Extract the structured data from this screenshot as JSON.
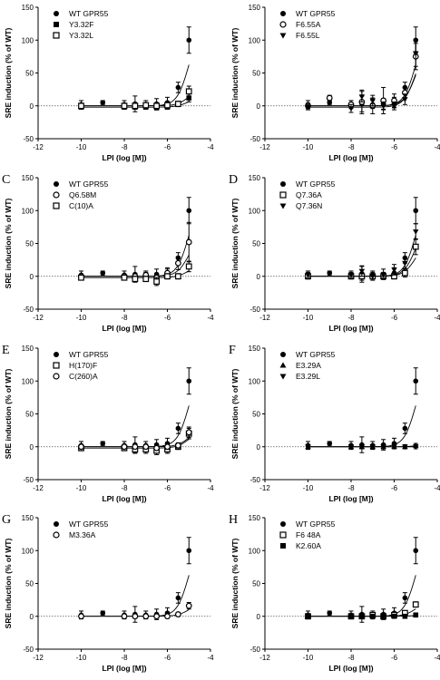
{
  "chart_data": [
    {
      "type": "scatter",
      "panel_label": "",
      "xlabel": "LPI (log [M])",
      "ylabel": "SRE induction (% of WT)",
      "xlim": [
        -12,
        -4
      ],
      "ylim": [
        -50,
        150
      ],
      "xticks": [
        "-12",
        "-10",
        "-8",
        "-6",
        "-4"
      ],
      "yticks": [
        "-50",
        "0",
        "50",
        "100",
        "150"
      ],
      "legend_position": "top-left",
      "series": [
        {
          "name": "WT GPR55",
          "marker": "filled-circle",
          "x": [
            -10,
            -9,
            -8,
            -7.5,
            -7,
            -6.5,
            -6,
            -5.5,
            -5
          ],
          "y": [
            2,
            5,
            2,
            3,
            2,
            3,
            5,
            28,
            100
          ],
          "err": [
            6,
            3,
            6,
            12,
            6,
            8,
            8,
            8,
            20
          ]
        },
        {
          "name": "Y3.32F",
          "marker": "filled-square",
          "x": [
            -10,
            -8,
            -7.5,
            -7,
            -6.5,
            -6,
            -5.5,
            -5
          ],
          "y": [
            -2,
            -2,
            -2,
            -2,
            -3,
            -2,
            2,
            12
          ],
          "err": [
            3,
            3,
            3,
            3,
            3,
            3,
            3,
            6
          ]
        },
        {
          "name": "Y3.32L",
          "marker": "open-square",
          "x": [
            -10,
            -8,
            -7.5,
            -7,
            -6.5,
            -6,
            -5.5,
            -5
          ],
          "y": [
            0,
            0,
            0,
            1,
            0,
            1,
            3,
            22
          ],
          "err": [
            3,
            3,
            3,
            3,
            3,
            3,
            4,
            8
          ]
        }
      ]
    },
    {
      "type": "scatter",
      "panel_label": "",
      "xlabel": "LPI (log [M])",
      "ylabel": "SRE induction (% of WT)",
      "xlim": [
        -12,
        -4
      ],
      "ylim": [
        -50,
        150
      ],
      "xticks": [
        "-12",
        "-10",
        "-8",
        "-6",
        "-4"
      ],
      "yticks": [
        "-50",
        "0",
        "50",
        "100",
        "150"
      ],
      "legend_position": "top-left",
      "series": [
        {
          "name": "WT GPR55",
          "marker": "filled-circle",
          "x": [
            -10,
            -9,
            -8,
            -7.5,
            -7,
            -6.5,
            -6,
            -5.5,
            -5
          ],
          "y": [
            2,
            5,
            2,
            3,
            2,
            3,
            5,
            28,
            100
          ],
          "err": [
            6,
            3,
            6,
            12,
            6,
            8,
            8,
            8,
            20
          ]
        },
        {
          "name": "F6.55A",
          "marker": "open-circle",
          "x": [
            -10,
            -9,
            -8,
            -7.5,
            -7,
            -6.5,
            -6,
            -5.5,
            -5
          ],
          "y": [
            0,
            12,
            2,
            6,
            0,
            8,
            8,
            20,
            75
          ],
          "err": [
            4,
            4,
            6,
            18,
            12,
            20,
            10,
            8,
            20
          ]
        },
        {
          "name": "F6.55L",
          "marker": "filled-triangle-down",
          "x": [
            -10,
            -8,
            -7.5,
            -7,
            -6.5,
            -6,
            -5.5,
            -5
          ],
          "y": [
            -2,
            -4,
            14,
            8,
            0,
            0,
            10,
            80
          ],
          "err": [
            4,
            6,
            8,
            8,
            6,
            6,
            8,
            20
          ]
        }
      ]
    },
    {
      "type": "scatter",
      "panel_label": "C",
      "xlabel": "LPI (log [M])",
      "ylabel": "SRE induction (% of WT)",
      "xlim": [
        -12,
        -4
      ],
      "ylim": [
        -50,
        150
      ],
      "xticks": [
        "-12",
        "-10",
        "-8",
        "-6",
        "-4"
      ],
      "yticks": [
        "-50",
        "0",
        "50",
        "100",
        "150"
      ],
      "legend_position": "top-left",
      "series": [
        {
          "name": "WT GPR55",
          "marker": "filled-circle",
          "x": [
            -10,
            -9,
            -8,
            -7.5,
            -7,
            -6.5,
            -6,
            -5.5,
            -5
          ],
          "y": [
            2,
            5,
            2,
            3,
            2,
            3,
            5,
            28,
            100
          ],
          "err": [
            6,
            3,
            6,
            12,
            6,
            8,
            8,
            8,
            20
          ]
        },
        {
          "name": "Q6.58M",
          "marker": "open-circle",
          "x": [
            -10,
            -8,
            -7.5,
            -7,
            -6.5,
            -6,
            -5.5,
            -5
          ],
          "y": [
            0,
            0,
            0,
            2,
            -2,
            5,
            20,
            52
          ],
          "err": [
            3,
            3,
            4,
            4,
            4,
            6,
            10,
            30
          ]
        },
        {
          "name": "C(10)A",
          "marker": "open-square",
          "x": [
            -10,
            -8,
            -7.5,
            -7,
            -6.5,
            -6,
            -5.5,
            -5
          ],
          "y": [
            -2,
            -2,
            -4,
            -4,
            -8,
            0,
            0,
            15
          ],
          "err": [
            3,
            3,
            4,
            4,
            6,
            4,
            4,
            8
          ]
        }
      ]
    },
    {
      "type": "scatter",
      "panel_label": "D",
      "xlabel": "LPI (log [M])",
      "ylabel": "SRE induction (% of WT)",
      "xlim": [
        -12,
        -4
      ],
      "ylim": [
        -50,
        150
      ],
      "xticks": [
        "-12",
        "-10",
        "-8",
        "-6",
        "-4"
      ],
      "yticks": [
        "-50",
        "0",
        "50",
        "100",
        "150"
      ],
      "legend_position": "top-left",
      "series": [
        {
          "name": "WT GPR55",
          "marker": "filled-circle",
          "x": [
            -10,
            -9,
            -8,
            -7.5,
            -7,
            -6.5,
            -6,
            -5.5,
            -5
          ],
          "y": [
            2,
            5,
            2,
            3,
            2,
            3,
            5,
            28,
            100
          ],
          "err": [
            6,
            3,
            6,
            12,
            6,
            8,
            8,
            8,
            20
          ]
        },
        {
          "name": "Q7.36A",
          "marker": "open-square",
          "x": [
            -10,
            -8,
            -7.5,
            -7,
            -6.5,
            -6,
            -5.5,
            -5
          ],
          "y": [
            0,
            0,
            0,
            0,
            0,
            0,
            5,
            45
          ],
          "err": [
            4,
            4,
            6,
            4,
            4,
            4,
            6,
            12
          ]
        },
        {
          "name": "Q7.36N",
          "marker": "filled-triangle-down",
          "x": [
            -10,
            -8,
            -7.5,
            -7,
            -6.5,
            -6,
            -5.5,
            -5
          ],
          "y": [
            2,
            2,
            8,
            0,
            2,
            10,
            20,
            68
          ],
          "err": [
            4,
            4,
            8,
            6,
            4,
            8,
            8,
            12
          ]
        }
      ]
    },
    {
      "type": "scatter",
      "panel_label": "E",
      "xlabel": "LPI (log [M])",
      "ylabel": "SRE induction (% of WT)",
      "xlim": [
        -12,
        -4
      ],
      "ylim": [
        -50,
        150
      ],
      "xticks": [
        "-12",
        "-10",
        "-8",
        "-6",
        "-4"
      ],
      "yticks": [
        "-50",
        "0",
        "50",
        "100",
        "150"
      ],
      "legend_position": "top-left",
      "series": [
        {
          "name": "WT GPR55",
          "marker": "filled-circle",
          "x": [
            -10,
            -9,
            -8,
            -7.5,
            -7,
            -6.5,
            -6,
            -5.5,
            -5
          ],
          "y": [
            2,
            5,
            2,
            3,
            2,
            3,
            5,
            28,
            100
          ],
          "err": [
            6,
            3,
            6,
            12,
            6,
            8,
            8,
            8,
            20
          ]
        },
        {
          "name": "H(170)F",
          "marker": "open-square",
          "x": [
            -10,
            -8,
            -7.5,
            -7,
            -6.5,
            -6,
            -5.5,
            -5
          ],
          "y": [
            -2,
            -2,
            -4,
            -4,
            -6,
            -4,
            0,
            20
          ],
          "err": [
            4,
            4,
            6,
            6,
            6,
            6,
            4,
            8
          ]
        },
        {
          "name": "C(260)A",
          "marker": "open-circle",
          "x": [
            -10,
            -8,
            -7.5,
            -7,
            -6.5,
            -6,
            -5.5,
            -5
          ],
          "y": [
            0,
            0,
            0,
            0,
            -2,
            0,
            2,
            22
          ],
          "err": [
            3,
            3,
            3,
            3,
            3,
            4,
            4,
            8
          ]
        }
      ]
    },
    {
      "type": "scatter",
      "panel_label": "F",
      "xlabel": "LPI (log [M])",
      "ylabel": "SRE induction (% of WT)",
      "xlim": [
        -12,
        -4
      ],
      "ylim": [
        -50,
        150
      ],
      "xticks": [
        "-12",
        "-10",
        "-8",
        "-6",
        "-4"
      ],
      "yticks": [
        "-50",
        "0",
        "50",
        "100",
        "150"
      ],
      "legend_position": "top-left",
      "series": [
        {
          "name": "WT GPR55",
          "marker": "filled-circle",
          "x": [
            -10,
            -9,
            -8,
            -7.5,
            -7,
            -6.5,
            -6,
            -5.5,
            -5
          ],
          "y": [
            2,
            5,
            2,
            3,
            2,
            3,
            5,
            28,
            100
          ],
          "err": [
            6,
            3,
            6,
            12,
            6,
            8,
            8,
            8,
            20
          ]
        },
        {
          "name": "E3.29A",
          "marker": "filled-triangle-up",
          "x": [
            -10,
            -8,
            -7.5,
            -7,
            -6.5,
            -6,
            -5.5,
            -5
          ],
          "y": [
            0,
            0,
            0,
            0,
            0,
            0,
            0,
            2
          ],
          "err": [
            3,
            3,
            3,
            3,
            3,
            3,
            3,
            3
          ]
        },
        {
          "name": "E3.29L",
          "marker": "filled-triangle-down",
          "x": [
            -10,
            -8,
            -7.5,
            -7,
            -6.5,
            -6,
            -5.5,
            -5
          ],
          "y": [
            0,
            0,
            0,
            0,
            0,
            0,
            0,
            0
          ],
          "err": [
            3,
            3,
            3,
            3,
            3,
            3,
            3,
            3
          ]
        }
      ]
    },
    {
      "type": "scatter",
      "panel_label": "G",
      "xlabel": "LPI (log [M])",
      "ylabel": "SRE induction (% of WT)",
      "xlim": [
        -12,
        -4
      ],
      "ylim": [
        -50,
        150
      ],
      "xticks": [
        "-12",
        "-10",
        "-8",
        "-6",
        "-4"
      ],
      "yticks": [
        "-50",
        "0",
        "50",
        "100",
        "150"
      ],
      "legend_position": "top-left",
      "series": [
        {
          "name": "WT GPR55",
          "marker": "filled-circle",
          "x": [
            -10,
            -9,
            -8,
            -7.5,
            -7,
            -6.5,
            -6,
            -5.5,
            -5
          ],
          "y": [
            2,
            5,
            2,
            3,
            2,
            3,
            5,
            28,
            100
          ],
          "err": [
            6,
            3,
            6,
            12,
            6,
            8,
            8,
            8,
            20
          ]
        },
        {
          "name": "M3.36A",
          "marker": "open-circle",
          "x": [
            -10,
            -8,
            -7.5,
            -7,
            -6.5,
            -6,
            -5.5,
            -5
          ],
          "y": [
            0,
            0,
            0,
            0,
            0,
            0,
            3,
            16
          ],
          "err": [
            3,
            3,
            3,
            3,
            3,
            3,
            3,
            5
          ]
        }
      ]
    },
    {
      "type": "scatter",
      "panel_label": "H",
      "xlabel": "LPI (log [M])",
      "ylabel": "SRE induction (% of WT)",
      "xlim": [
        -12,
        -4
      ],
      "ylim": [
        -50,
        150
      ],
      "xticks": [
        "-12",
        "-10",
        "-8",
        "-6",
        "-4"
      ],
      "yticks": [
        "-50",
        "0",
        "50",
        "100",
        "150"
      ],
      "legend_position": "top-left",
      "series": [
        {
          "name": "WT GPR55",
          "marker": "filled-circle",
          "x": [
            -10,
            -9,
            -8,
            -7.5,
            -7,
            -6.5,
            -6,
            -5.5,
            -5
          ],
          "y": [
            2,
            5,
            2,
            3,
            2,
            3,
            5,
            28,
            100
          ],
          "err": [
            6,
            3,
            6,
            12,
            6,
            8,
            8,
            8,
            20
          ]
        },
        {
          "name": "F6 48A",
          "marker": "open-square",
          "x": [
            -10,
            -8,
            -7.5,
            -7,
            -6.5,
            -6,
            -5.5,
            -5
          ],
          "y": [
            0,
            0,
            0,
            2,
            0,
            2,
            5,
            18
          ],
          "err": [
            3,
            3,
            3,
            3,
            3,
            3,
            3,
            4
          ]
        },
        {
          "name": "K2.60A",
          "marker": "filled-square",
          "x": [
            -10,
            -8,
            -7.5,
            -7,
            -6.5,
            -6,
            -5.5,
            -5
          ],
          "y": [
            0,
            0,
            0,
            0,
            0,
            0,
            0,
            2
          ],
          "err": [
            3,
            3,
            3,
            3,
            3,
            3,
            3,
            3
          ]
        }
      ]
    }
  ]
}
